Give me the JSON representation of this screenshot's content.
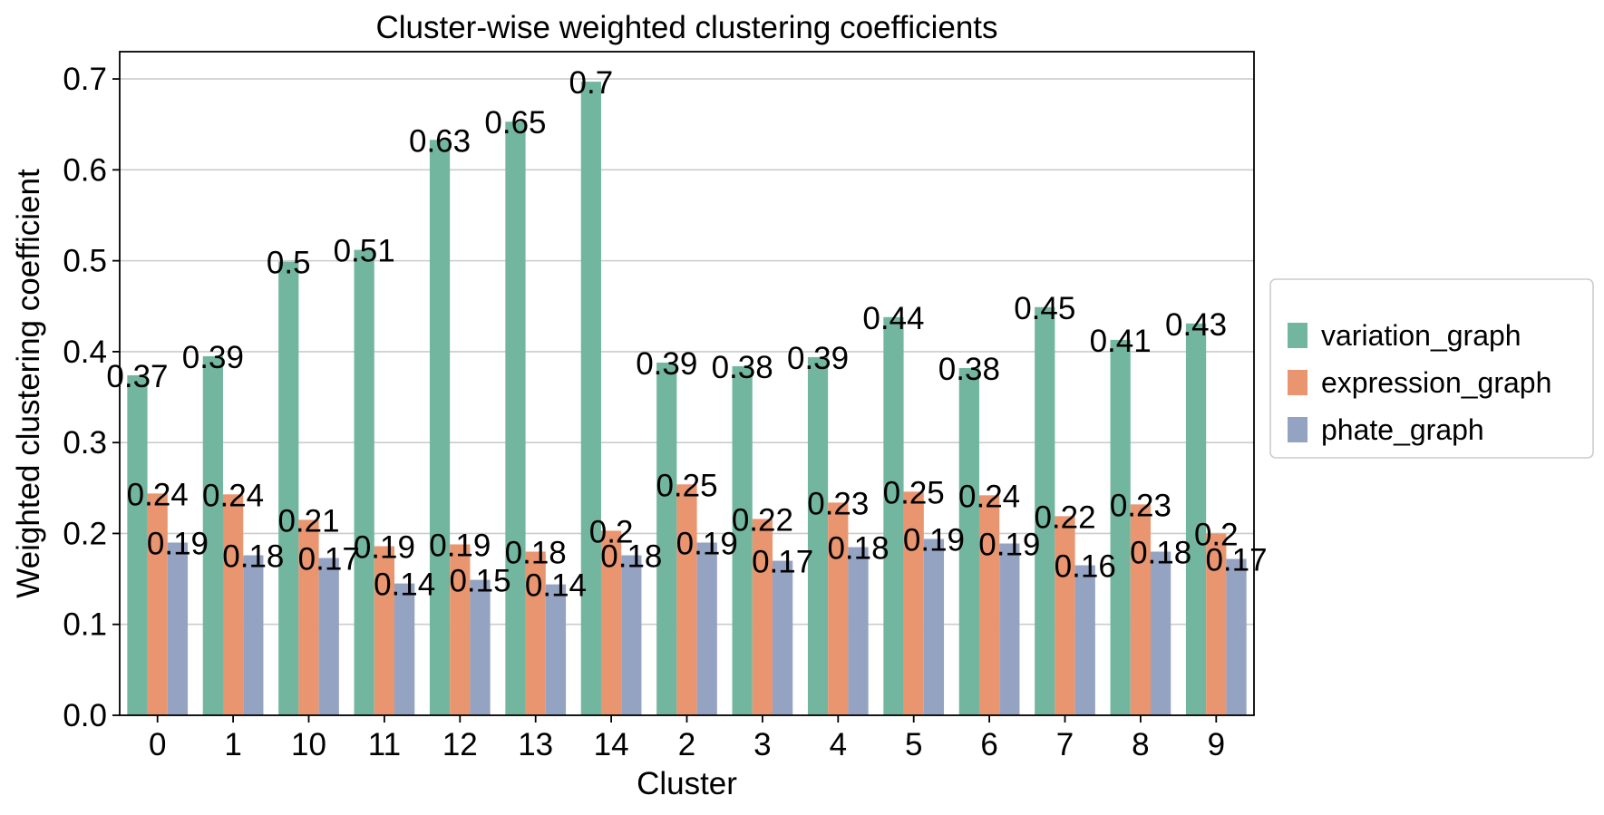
{
  "chart_data": {
    "type": "bar",
    "title": "Cluster-wise weighted clustering coefficients",
    "xlabel": "Cluster",
    "ylabel": "Weighted clustering coefficient",
    "categories": [
      "0",
      "1",
      "10",
      "11",
      "12",
      "13",
      "14",
      "2",
      "3",
      "4",
      "5",
      "6",
      "7",
      "8",
      "9"
    ],
    "series": [
      {
        "name": "variation_graph",
        "color": "#72b6a0",
        "values": [
          0.374,
          0.395,
          0.499,
          0.512,
          0.633,
          0.653,
          0.697,
          0.388,
          0.384,
          0.394,
          0.438,
          0.382,
          0.449,
          0.413,
          0.431
        ],
        "labels": [
          "0.37",
          "0.39",
          "0.5",
          "0.51",
          "0.63",
          "0.65",
          "0.7",
          "0.39",
          "0.38",
          "0.39",
          "0.44",
          "0.38",
          "0.45",
          "0.41",
          "0.43"
        ]
      },
      {
        "name": "expression_graph",
        "color": "#e9956f",
        "values": [
          0.244,
          0.243,
          0.215,
          0.186,
          0.188,
          0.18,
          0.203,
          0.254,
          0.216,
          0.234,
          0.246,
          0.242,
          0.219,
          0.232,
          0.2
        ],
        "labels": [
          "0.24",
          "0.24",
          "0.21",
          "0.19",
          "0.19",
          "0.18",
          "0.2",
          "0.25",
          "0.22",
          "0.23",
          "0.25",
          "0.24",
          "0.22",
          "0.23",
          "0.2"
        ]
      },
      {
        "name": "phate_graph",
        "color": "#95a3c3",
        "values": [
          0.19,
          0.176,
          0.173,
          0.145,
          0.149,
          0.144,
          0.176,
          0.19,
          0.17,
          0.185,
          0.194,
          0.189,
          0.165,
          0.18,
          0.172
        ],
        "labels": [
          "0.19",
          "0.18",
          "0.17",
          "0.14",
          "0.15",
          "0.14",
          "0.18",
          "0.19",
          "0.17",
          "0.18",
          "0.19",
          "0.19",
          "0.16",
          "0.18",
          "0.17"
        ]
      }
    ],
    "ylim": [
      0,
      0.73
    ],
    "yticks": [
      "0.0",
      "0.1",
      "0.2",
      "0.3",
      "0.4",
      "0.5",
      "0.6",
      "0.7"
    ],
    "grid": "horizontal",
    "legend_position": "right"
  }
}
